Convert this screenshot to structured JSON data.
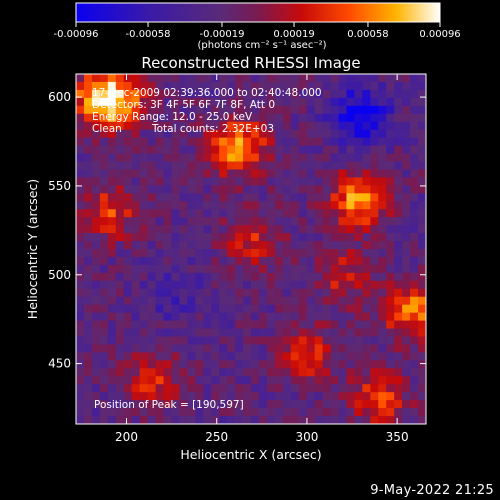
{
  "chart_data": {
    "type": "heatmap",
    "title": "Reconstructed RHESSI Image",
    "xlabel": "Heliocentric X (arcsec)",
    "ylabel": "Heliocentric Y (arcsec)",
    "xlim": [
      172,
      366
    ],
    "ylim": [
      416,
      613
    ],
    "x_ticks": [
      200,
      250,
      300,
      350
    ],
    "y_ticks": [
      450,
      500,
      550,
      600
    ],
    "colorbar": {
      "range": [
        -0.00096,
        0.00096
      ],
      "tick_values": [
        -0.00096,
        -0.00058,
        -0.00019,
        0.00019,
        0.00058,
        0.00096
      ],
      "tick_labels": [
        "-0.00096",
        "-0.00058",
        "-0.00019",
        "0.00019",
        "0.00058",
        "0.00096"
      ],
      "unit_label": "(photons cm⁻² s⁻¹ asec⁻²)",
      "colormap": "blue-purple-red-orange-yellow-white"
    },
    "annotations": {
      "time_range": "17-Dec-2009 02:39:36.000 to 02:40:48.000",
      "detectors": "Detectors: 3F 4F 5F 6F 7F 8F, Att 0",
      "energy_range": "Energy Range: 12.0 - 25.0 keV",
      "method": "Clean",
      "total_counts": "Total counts: 2.32E+03",
      "peak_label": "Position of Peak = [190,597]"
    },
    "peak_position": [
      190,
      597
    ],
    "bright_sources": [
      {
        "x": 182,
        "y": 600,
        "value": 0.00058
      },
      {
        "x": 195,
        "y": 598,
        "value": 0.0009
      },
      {
        "x": 262,
        "y": 572,
        "value": 0.00092
      },
      {
        "x": 328,
        "y": 542,
        "value": 0.00088
      },
      {
        "x": 358,
        "y": 480,
        "value": 0.0008
      },
      {
        "x": 190,
        "y": 535,
        "value": 0.0006
      },
      {
        "x": 270,
        "y": 520,
        "value": 0.0005
      },
      {
        "x": 320,
        "y": 500,
        "value": 0.00045
      },
      {
        "x": 300,
        "y": 455,
        "value": 0.00055
      },
      {
        "x": 215,
        "y": 440,
        "value": 0.0005
      },
      {
        "x": 340,
        "y": 430,
        "value": 0.0006
      }
    ],
    "dark_sources": [
      {
        "x": 330,
        "y": 590,
        "value": -0.0008
      },
      {
        "x": 225,
        "y": 490,
        "value": -0.0003
      }
    ]
  },
  "footer": {
    "date": "9-May-2022 21:25"
  }
}
